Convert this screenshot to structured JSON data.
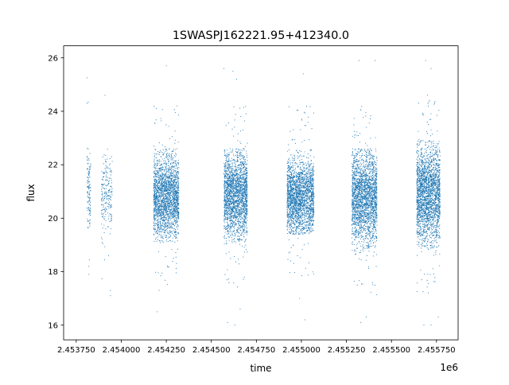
{
  "chart_data": {
    "type": "scatter",
    "title": "1SWASPJ162221.95+412340.0",
    "xlabel": "time",
    "ylabel": "flux",
    "x_offset_label": "1e6",
    "xlim": [
      2.45368,
      2.45587
    ],
    "ylim": [
      15.45,
      26.45
    ],
    "x_ticks": [
      {
        "value": 2.45375,
        "label": "2.453750"
      },
      {
        "value": 2.454,
        "label": "2.454000"
      },
      {
        "value": 2.45425,
        "label": "2.454250"
      },
      {
        "value": 2.4545,
        "label": "2.454500"
      },
      {
        "value": 2.45475,
        "label": "2.454750"
      },
      {
        "value": 2.455,
        "label": "2.455000"
      },
      {
        "value": 2.45525,
        "label": "2.455250"
      },
      {
        "value": 2.4555,
        "label": "2.455500"
      },
      {
        "value": 2.45575,
        "label": "2.455750"
      }
    ],
    "y_ticks": [
      {
        "value": 16,
        "label": "16"
      },
      {
        "value": 18,
        "label": "18"
      },
      {
        "value": 20,
        "label": "20"
      },
      {
        "value": 22,
        "label": "22"
      },
      {
        "value": 24,
        "label": "24"
      },
      {
        "value": 26,
        "label": "26"
      }
    ],
    "grid": false,
    "legend": "none",
    "marker_color": "#1f77b4",
    "series": [
      {
        "values_note": "",
        "clusters": [
          {
            "x_range": [
              2.45381,
              2.45383
            ],
            "y_center": 21.0,
            "y_spread": [
              19.6,
              22.8
            ],
            "outliers": [
              [
                2.45381,
                25.25
              ],
              [
                2.45381,
                24.3
              ],
              [
                2.45382,
                18.2
              ],
              [
                2.45382,
                17.9
              ]
            ],
            "density": 120
          },
          {
            "x_range": [
              2.45389,
              2.45395
            ],
            "y_center": 20.9,
            "y_spread": [
              19.0,
              22.4
            ],
            "outliers": [
              [
                2.45391,
                24.6
              ],
              [
                2.45394,
                17.3
              ],
              [
                2.45394,
                17.1
              ],
              [
                2.45393,
                18.6
              ]
            ],
            "density": 220
          },
          {
            "x_range": [
              2.45418,
              2.45432
            ],
            "y_center": 20.8,
            "y_spread": [
              19.1,
              22.6
            ],
            "outliers": [
              [
                2.4542,
                16.5
              ],
              [
                2.45421,
                17.3
              ],
              [
                2.45425,
                25.7
              ],
              [
                2.45431,
                24.2
              ],
              [
                2.45429,
                18.5
              ]
            ],
            "density": 2200
          },
          {
            "x_range": [
              2.45457,
              2.4547
            ],
            "y_center": 20.9,
            "y_spread": [
              19.0,
              22.6
            ],
            "outliers": [
              [
                2.45457,
                25.6
              ],
              [
                2.45462,
                25.5
              ],
              [
                2.45464,
                25.2
              ],
              [
                2.45459,
                16.1
              ],
              [
                2.45463,
                16.0
              ],
              [
                2.45466,
                16.6
              ]
            ],
            "density": 2300
          },
          {
            "x_range": [
              2.45492,
              2.45507
            ],
            "y_center": 20.8,
            "y_spread": [
              19.4,
              22.6
            ],
            "outliers": [
              [
                2.45501,
                25.4
              ],
              [
                2.45502,
                16.2
              ],
              [
                2.45499,
                17.0
              ],
              [
                2.45494,
                18.4
              ]
            ],
            "density": 2400
          },
          {
            "x_range": [
              2.45528,
              2.45542
            ],
            "y_center": 20.8,
            "y_spread": [
              18.7,
              22.6
            ],
            "outliers": [
              [
                2.45532,
                25.9
              ],
              [
                2.45541,
                25.9
              ],
              [
                2.45533,
                16.1
              ],
              [
                2.45536,
                16.3
              ],
              [
                2.45531,
                17.5
              ]
            ],
            "density": 2300
          },
          {
            "x_range": [
              2.45564,
              2.45577
            ],
            "y_center": 20.9,
            "y_spread": [
              18.8,
              22.9
            ],
            "outliers": [
              [
                2.45569,
                25.9
              ],
              [
                2.45572,
                25.6
              ],
              [
                2.45568,
                16.0
              ],
              [
                2.45572,
                16.0
              ],
              [
                2.45576,
                16.3
              ],
              [
                2.4557,
                24.6
              ]
            ],
            "density": 2600
          }
        ]
      }
    ]
  }
}
